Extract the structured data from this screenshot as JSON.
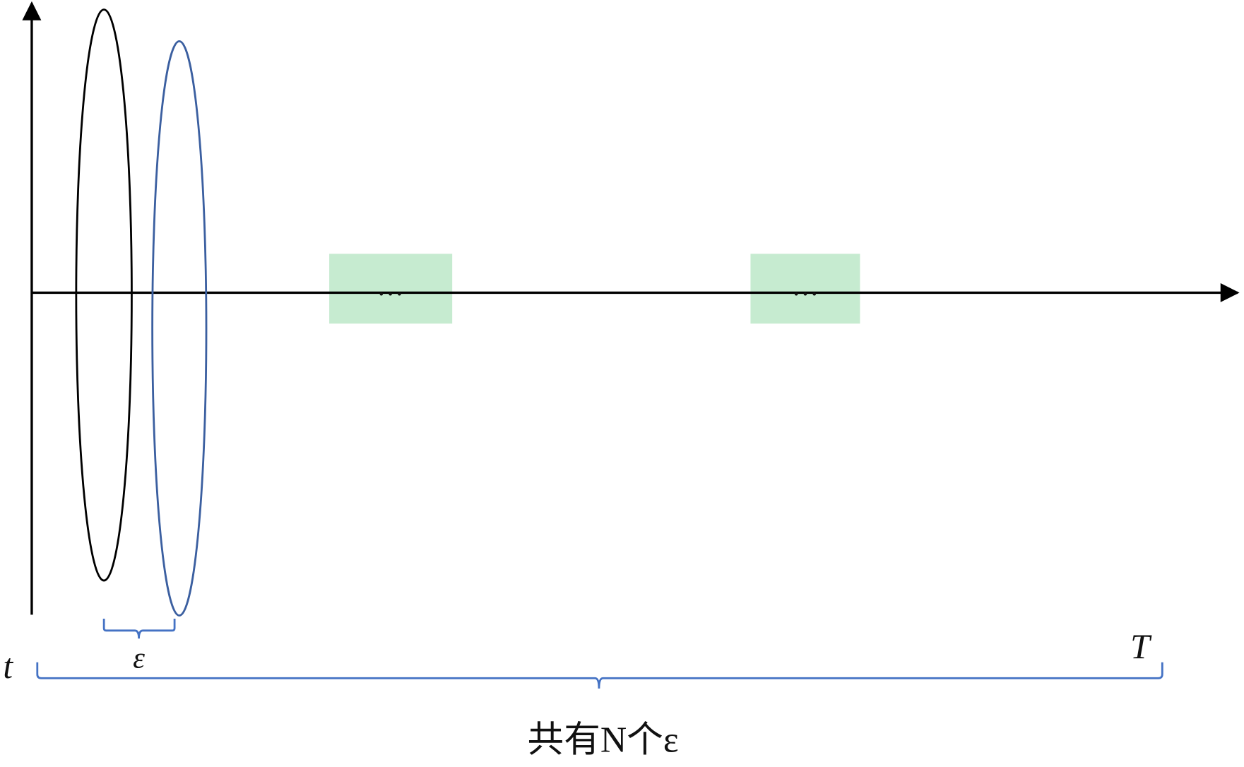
{
  "axis_labels": {
    "origin": "t",
    "end": "T"
  },
  "interval_label": "ε",
  "gap_labels": [
    "…",
    "…"
  ],
  "caption": "共有N个ε"
}
